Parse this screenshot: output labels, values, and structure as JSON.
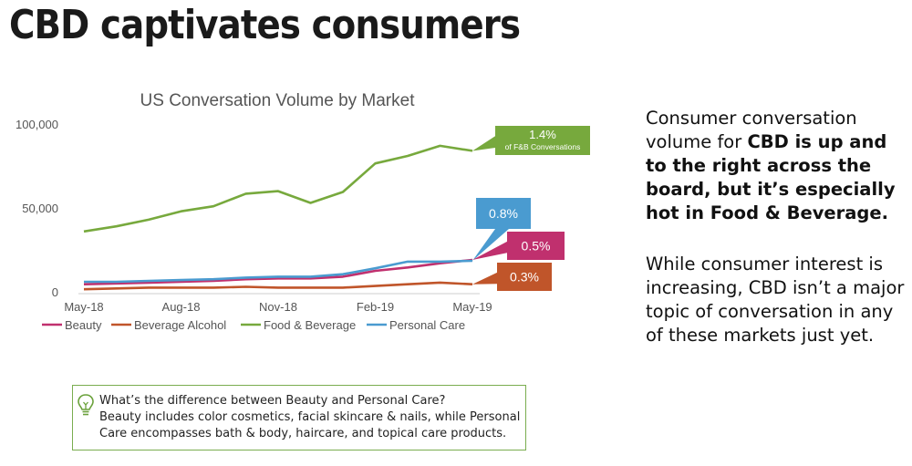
{
  "headline": "CBD captivates consumers",
  "chart_data": {
    "type": "line",
    "title": "US Conversation Volume by Market",
    "x_ticks": [
      "May-18",
      "Aug-18",
      "Nov-18",
      "Feb-19",
      "May-19"
    ],
    "y_ticks": [
      "100,000",
      "50,000",
      "0"
    ],
    "ylim": [
      0,
      100000
    ],
    "legend_position": "bottom",
    "grid": false,
    "x": [
      "May-18",
      "Jun-18",
      "Jul-18",
      "Aug-18",
      "Sep-18",
      "Oct-18",
      "Nov-18",
      "Dec-18",
      "Jan-19",
      "Feb-19",
      "Mar-19",
      "Apr-19",
      "May-19"
    ],
    "series": [
      {
        "name": "Beauty",
        "color": "#c0306e",
        "values": [
          4500,
          5000,
          5500,
          6000,
          6500,
          7500,
          8000,
          8000,
          9000,
          12500,
          14500,
          17000,
          19000
        ]
      },
      {
        "name": "Beverage Alcohol",
        "color": "#c0552a",
        "values": [
          1500,
          2000,
          2500,
          2500,
          2500,
          3000,
          2500,
          2500,
          2500,
          3500,
          4500,
          5500,
          4500
        ]
      },
      {
        "name": "Food & Beverage",
        "color": "#77a93d",
        "values": [
          36000,
          39000,
          43000,
          48000,
          51000,
          58500,
          60000,
          53000,
          59500,
          76500,
          81000,
          87000,
          84000
        ]
      },
      {
        "name": "Personal Care",
        "color": "#4a9bd0",
        "values": [
          6000,
          6000,
          6500,
          7000,
          7500,
          8500,
          9000,
          9000,
          10500,
          14000,
          18000,
          18000,
          18500
        ]
      }
    ],
    "callouts": [
      {
        "label": "1.4%",
        "sublabel": "of F&B Conversations",
        "series": "Food & Beverage",
        "color": "#77a93d"
      },
      {
        "label": "0.8%",
        "series": "Personal Care",
        "color": "#4a9bd0"
      },
      {
        "label": "0.5%",
        "series": "Beauty",
        "color": "#c0306e"
      },
      {
        "label": "0.3%",
        "series": "Beverage Alcohol",
        "color": "#c0552a"
      }
    ]
  },
  "side": {
    "p1_a": "Consumer conversation volume for ",
    "p1_b": "CBD is up and to the right across the board, but it’s especially hot in Food & Beverage.",
    "p2": "While consumer interest is increasing, CBD isn’t a major topic of conversation in any of these markets just yet."
  },
  "tip": {
    "icon": "lightbulb-icon",
    "line1": "What’s the difference between Beauty and Personal Care?",
    "line2": "Beauty includes color cosmetics, facial skincare & nails, while Personal Care encompasses bath & body, haircare, and topical care products."
  }
}
